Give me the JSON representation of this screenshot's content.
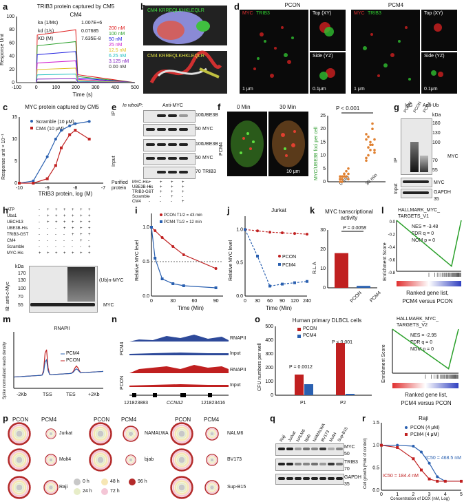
{
  "panels": {
    "a": "a",
    "b": "b",
    "c": "c",
    "d": "d",
    "e": "e",
    "f": "f",
    "g": "g",
    "h": "h",
    "i": "i",
    "j": "j",
    "k": "k",
    "l": "l",
    "m": "m",
    "n": "n",
    "o": "o",
    "p": "p",
    "q": "q",
    "r": "r"
  },
  "a": {
    "title": "TRIB3 protein captured by CM5",
    "sub": "CM4",
    "ka": "ka (1/Ms)",
    "ka_v": "1.007E+6",
    "kd": "kd (1/s)",
    "kd_v": "0.07685",
    "KD": "KD (M)",
    "KD_v": "7.635E-8",
    "ylabel": "Response Unit",
    "xlabel": "Time (s)",
    "conc": [
      "200 nM",
      "100 nM",
      "50 nM",
      "25 nM",
      "12.5 nM",
      "6.25 nM",
      "3.125 nM",
      "0.00 nM"
    ],
    "conc_colors": [
      "#e02020",
      "#2aa02a",
      "#2020e0",
      "#d020d0",
      "#e0c020",
      "#20c0c0",
      "#8020c0",
      "#333333"
    ],
    "xticks": [
      "-100",
      "0",
      "100",
      "200",
      "300",
      "400",
      "500"
    ],
    "yticks": [
      "0",
      "20",
      "40",
      "60",
      "80",
      "100"
    ]
  },
  "b": {
    "seq1": "CM4 KRREQLKHKLEQLR",
    "seq2": "CM4 KRREQLKHKLEQLR"
  },
  "c": {
    "title": "MYC protein captured by CM5",
    "legend": [
      "Scramble (10 μM)",
      "CM4 (10 μM)"
    ],
    "ylabel": "Response unit × 10⁻¹",
    "xlabel": "TRIB3 protein, log (M)",
    "xticks": [
      "-10",
      "-9",
      "-8",
      "-7"
    ],
    "yticks": [
      "0",
      "5",
      "10",
      "15"
    ]
  },
  "d": {
    "pcon": "PCON",
    "pcm4": "PCM4",
    "myc": "MYC",
    "trib3": "TRIB3",
    "top": "Top (XY)",
    "side": "Side (YZ)",
    "scale1": "1 μm",
    "scale2": "0.1μm"
  },
  "e": {
    "header": "In vitroIP:",
    "anti": "Anti-MYC",
    "ip": "IP",
    "input": "Input",
    "rows": [
      "UBE3B",
      "MYC",
      "UBE3B",
      "MYC",
      "TRIB3"
    ],
    "kda": [
      "100",
      "50",
      "100",
      "50",
      "70"
    ],
    "purified": "Purified protein",
    "conds": [
      "MYC-His",
      "UBE3B-His",
      "TRIB3-GST",
      "Scramble",
      "CM4"
    ],
    "signs": [
      [
        "+",
        "+",
        "+",
        "+"
      ],
      [
        "+",
        "+",
        "+",
        "+"
      ],
      [
        "-",
        "+",
        "+",
        "+"
      ],
      [
        "-",
        "-",
        "+",
        "-"
      ],
      [
        "-",
        "-",
        "-",
        "+"
      ]
    ]
  },
  "f": {
    "min0": "0 Min",
    "min30": "30 Min",
    "side": "PCM4",
    "scale": "10 μm",
    "p": "P < 0.001",
    "ylabel": "MYC/UBE3B foci per cell",
    "xt": [
      "0 min",
      "30 min"
    ],
    "yticks": [
      "0",
      "5",
      "10",
      "15",
      "20",
      "25"
    ]
  },
  "g": {
    "igg": "IgG",
    "antiub": "Anti-Ub",
    "cols": [
      "PCON",
      "PCON",
      "PCM4"
    ],
    "ip": "IP",
    "input": "Input",
    "myc": "MYC",
    "myc2": "MYC",
    "gapdh": "GAPDH",
    "kda_label": "kDa",
    "kda": [
      "180",
      "130",
      "100",
      "70",
      "55",
      "35"
    ]
  },
  "h": {
    "rows": [
      "ATP",
      "Uba1",
      "UBCH13",
      "UBE3B-His",
      "TRIB3-GST",
      "CM4",
      "Scramble",
      "MYC-His"
    ],
    "signs": [
      [
        "-",
        "+",
        "+",
        "+",
        "+",
        "+",
        "+"
      ],
      [
        "-",
        "+",
        "+",
        "+",
        "+",
        "+",
        "+"
      ],
      [
        "-",
        "+",
        "+",
        "+",
        "+",
        "+",
        "+"
      ],
      [
        "-",
        "-",
        "-",
        "+",
        "+",
        "+",
        "+"
      ],
      [
        "-",
        "-",
        "-",
        "-",
        "+",
        "+",
        "+"
      ],
      [
        "-",
        "-",
        "-",
        "-",
        "-",
        "+",
        "-"
      ],
      [
        "-",
        "-",
        "-",
        "-",
        "-",
        "-",
        "+"
      ],
      [
        "+",
        "+",
        "+",
        "+",
        "+",
        "+",
        "+"
      ]
    ],
    "kda_label": "kDa",
    "kda": [
      "170",
      "130",
      "100",
      "70",
      "55"
    ],
    "ub": "(Ub)n-MYC",
    "myc": "MYC",
    "ib": "IB: anti-c-Myc"
  },
  "i": {
    "ylabel": "Relative MYC level",
    "xlabel": "Time (Min)",
    "legend": [
      "PCON  T1/2 = 43 min",
      "PCM4  T1/2 = 12 min"
    ],
    "xticks": [
      "0",
      "30",
      "60",
      "90"
    ],
    "yticks": [
      "0.0",
      "0.5",
      "1.0"
    ]
  },
  "j": {
    "title": "Jurkat",
    "ylabel": "Relative MYC level",
    "xlabel": "Time (Min)",
    "legend": [
      "PCON",
      "PCM4"
    ],
    "xticks": [
      "0",
      "30",
      "60",
      "90",
      "120",
      "240"
    ],
    "yticks": [
      "0.0",
      "0.5",
      "1.0"
    ]
  },
  "k": {
    "title": "MYC transcriptional activity",
    "p": "P = 0.0058",
    "ylabel": "R.L.A",
    "xt": [
      "PCON",
      "PCM4"
    ],
    "yticks": [
      "0",
      "10",
      "20",
      "30"
    ]
  },
  "l": {
    "title1": "HALLMARK_MYC_",
    "title2": "TARGETS_V1",
    "nes": "NES = -3.48",
    "fdr": "FDR q = 0",
    "nom": "NOM p = 0",
    "ylabel": "Enrichment Score",
    "yticks": [
      "0.0",
      "-0.2",
      "-0.4",
      "-0.6",
      "-0.8"
    ],
    "foot": "Ranked gene list,",
    "foot2": "PCM4 versus PCON"
  },
  "m": {
    "title": "RNAPII",
    "legend": [
      "PCM4",
      "PCON"
    ],
    "ylabel": "Spike normalized reads density",
    "xt": [
      "-2Kb",
      "TSS",
      "TES",
      "+2Kb"
    ]
  },
  "n": {
    "rows": [
      "RNAPII",
      "Input",
      "RNAPII",
      "Input"
    ],
    "side1": "PCM4",
    "side2": "PCON",
    "coord1": "121823883",
    "coord2": "121823416",
    "gene": "CCNA2"
  },
  "o": {
    "title": "Human primary DLBCL cells",
    "legend": [
      "PCON",
      "PCM4"
    ],
    "p1": "P = 0.0012",
    "p2": "P < 0.001",
    "ylabel": "CFU numbers per well",
    "xt": [
      "P1",
      "P2"
    ],
    "yticks": [
      "0",
      "100",
      "200",
      "300",
      "400",
      "500"
    ],
    "gsea_title1": "HALLMARK_MYC_",
    "gsea_title2": "TARGETS_V2",
    "nes": "NES = -2.95",
    "fdr": "FDR q = 0",
    "nom": "NOM p = 0",
    "gsea_ylabel": "Enrichment Score",
    "foot": "Ranked gene list,",
    "foot2": "PCM4 versus PCON"
  },
  "p": {
    "groups": [
      {
        "a": "PCON",
        "b": "PCM4",
        "cells": [
          "Jurkat",
          "Molt4",
          "Raji"
        ]
      },
      {
        "a": "PCON",
        "b": "PCM4",
        "cells": [
          "NAMALWA",
          "bjab"
        ]
      },
      {
        "a": "PCON",
        "b": "PCM4",
        "cells": [
          "NALM6",
          "BV173",
          "Sup-B15"
        ]
      }
    ],
    "legend": [
      "0 h",
      "48 h",
      "96 h",
      "24 h",
      "72 h"
    ],
    "legend_colors": [
      "#c8c8c8",
      "#f6e6b4",
      "#b42a2a",
      "#e7edc8",
      "#f4c6d6"
    ]
  },
  "q": {
    "cols": [
      "Raji",
      "Jurkat",
      "NALM6",
      "bjab",
      "NAMALWA",
      "BV173",
      "Molt4",
      "Sup-B15"
    ],
    "rows": [
      "MYC",
      "TRIB3",
      "GAPDH"
    ],
    "kda": [
      "50",
      "70",
      "35"
    ]
  },
  "r": {
    "title": "Raji",
    "legend": [
      "PCON (4 μM)",
      "PCM4 (4 μM)"
    ],
    "ic1": "IC50 = 468.5 nM",
    "ic2": "IC50 = 184.4 nM",
    "ylabel": "Cell growth (Fold of control)",
    "xlabel": "Concentration of DOX (nM, Log)",
    "xticks": [
      "0",
      "1",
      "2",
      "3",
      "4",
      "5"
    ],
    "yticks": [
      "0.0",
      "0.5",
      "1.0",
      "1.5"
    ]
  },
  "chart_data": [
    {
      "type": "line",
      "panel": "c",
      "x": [
        -10,
        -9.5,
        -9,
        -8.7,
        -8.5,
        -8.2,
        -8,
        -7.5
      ],
      "series": [
        {
          "name": "Scramble (10 μM)",
          "values": [
            0,
            0.5,
            6,
            10,
            12,
            13,
            13.5,
            14
          ]
        },
        {
          "name": "CM4 (10 μM)",
          "values": [
            0,
            0,
            1,
            4,
            8,
            11,
            12,
            10
          ]
        }
      ]
    },
    {
      "type": "line",
      "panel": "i",
      "x": [
        0,
        5,
        15,
        30,
        45,
        90
      ],
      "series": [
        {
          "name": "PCON",
          "values": [
            1.0,
            0.95,
            0.85,
            0.72,
            0.6,
            0.4
          ]
        },
        {
          "name": "PCM4",
          "values": [
            1.0,
            0.55,
            0.25,
            0.18,
            0.15,
            0.12
          ]
        }
      ]
    },
    {
      "type": "line",
      "panel": "j",
      "x": [
        0,
        30,
        60,
        90,
        120,
        240
      ],
      "series": [
        {
          "name": "PCON",
          "values": [
            1.0,
            0.98,
            0.96,
            0.95,
            0.94,
            0.93
          ]
        },
        {
          "name": "PCM4",
          "values": [
            1.0,
            0.6,
            0.15,
            0.18,
            0.2,
            0.22
          ]
        }
      ]
    },
    {
      "type": "bar",
      "panel": "k",
      "categories": [
        "PCON",
        "PCM4"
      ],
      "values": [
        18,
        1
      ]
    },
    {
      "type": "bar",
      "panel": "o",
      "categories": [
        "P1",
        "P2"
      ],
      "series": [
        {
          "name": "PCON",
          "values": [
            150,
            380
          ]
        },
        {
          "name": "PCM4",
          "values": [
            80,
            10
          ]
        }
      ]
    },
    {
      "type": "scatter",
      "panel": "f",
      "categories": [
        "0 min",
        "30 min"
      ],
      "values": [
        2,
        14
      ]
    },
    {
      "type": "line",
      "panel": "r",
      "x": [
        0,
        1,
        2,
        2.5,
        3,
        3.5,
        4,
        5
      ],
      "series": [
        {
          "name": "PCON (4 μM)",
          "values": [
            1.0,
            1.0,
            0.98,
            0.85,
            0.6,
            0.3,
            0.2,
            0.2
          ]
        },
        {
          "name": "PCM4 (4 μM)",
          "values": [
            1.0,
            0.95,
            0.7,
            0.45,
            0.25,
            0.2,
            0.2,
            0.2
          ]
        }
      ]
    }
  ]
}
